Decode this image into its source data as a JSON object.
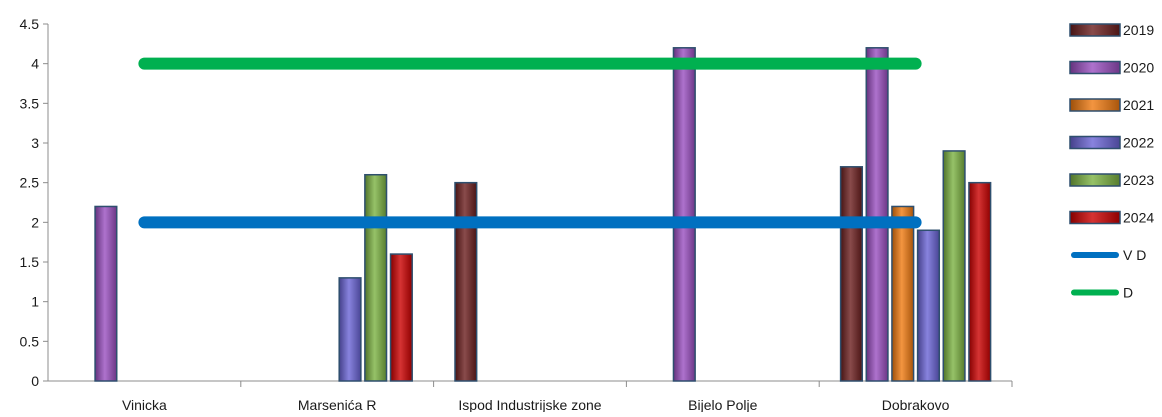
{
  "chart_data": {
    "type": "bar",
    "title": "",
    "xlabel": "",
    "ylabel": "",
    "ylim": [
      0,
      4.5
    ],
    "y_ticks": [
      "0",
      "0.5",
      "1",
      "1.5",
      "2",
      "2.5",
      "3",
      "3.5",
      "4",
      "4.5"
    ],
    "grid": false,
    "legend_position": "right",
    "categories": [
      "Vinicka",
      "Marsenića R",
      "Ispod Industrijske zone",
      "Bijelo Polje",
      "Dobrakovo"
    ],
    "series": [
      {
        "name": "2019",
        "color": "#6b1e1e",
        "values": [
          null,
          null,
          2.5,
          null,
          2.7
        ]
      },
      {
        "name": "2020",
        "color": "#9a4fc0",
        "values": [
          2.2,
          null,
          null,
          4.2,
          4.2
        ]
      },
      {
        "name": "2021",
        "color": "#f07a10",
        "values": [
          null,
          null,
          null,
          null,
          2.2
        ]
      },
      {
        "name": "2022",
        "color": "#6a64d6",
        "values": [
          null,
          1.3,
          null,
          null,
          1.9
        ]
      },
      {
        "name": "2023",
        "color": "#7cb342",
        "values": [
          null,
          2.6,
          null,
          null,
          2.9
        ]
      },
      {
        "name": "2024",
        "color": "#cc0000",
        "values": [
          null,
          1.6,
          null,
          null,
          2.5
        ]
      }
    ],
    "reference_lines": [
      {
        "name": "V D",
        "color": "#0070c0",
        "value": 2.0
      },
      {
        "name": "D",
        "color": "#00b050",
        "value": 4.0
      }
    ]
  }
}
